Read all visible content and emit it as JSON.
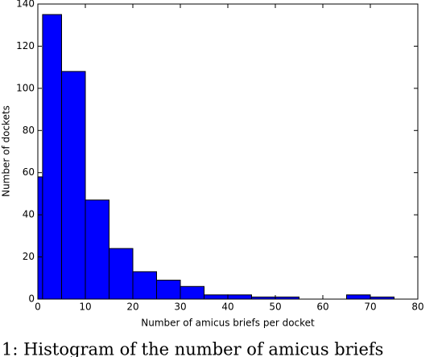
{
  "chart_data": {
    "type": "histogram",
    "bins": [
      0,
      1,
      5,
      10,
      15,
      20,
      25,
      30,
      35,
      40,
      45,
      50,
      55,
      60,
      65,
      70,
      75
    ],
    "values": [
      58,
      135,
      108,
      47,
      24,
      13,
      9,
      6,
      2,
      2,
      1,
      1,
      0,
      0,
      2,
      1
    ],
    "color": "#0000ff",
    "xlabel": "Number of amicus briefs per docket",
    "ylabel": "Number of dockets",
    "xlim": [
      0,
      80
    ],
    "xticks": [
      0,
      10,
      20,
      30,
      40,
      50,
      60,
      70,
      80
    ],
    "ylim": [
      0,
      140
    ],
    "yticks": [
      0,
      20,
      40,
      60,
      80,
      100,
      120,
      140
    ],
    "caption": "1: Histogram of the number of amicus briefs"
  }
}
